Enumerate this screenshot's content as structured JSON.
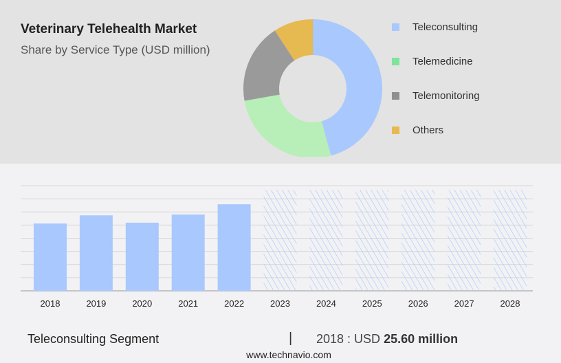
{
  "title": "Veterinary Telehealth Market",
  "subtitle": "Share by Service Type (USD million)",
  "chart_data": [
    {
      "type": "pie",
      "subtype": "donut",
      "legend_position": "right",
      "labels": [
        "Teleconsulting",
        "Telemedicine",
        "Telemonitoring",
        "Others"
      ],
      "values": [
        45.8,
        26.4,
        18.6,
        9.2
      ],
      "colors": [
        "#a8c8fe",
        "#b8eeb8",
        "#9a9a9a",
        "#e6b951"
      ]
    },
    {
      "type": "bar",
      "categories": [
        "2018",
        "2019",
        "2020",
        "2021",
        "2022",
        "2023",
        "2024",
        "2025",
        "2026",
        "2027",
        "2028"
      ],
      "values": [
        25.6,
        28.7,
        25.9,
        29.0,
        32.9,
        null,
        null,
        null,
        null,
        null,
        null
      ],
      "forecast": [
        "2023",
        "2024",
        "2025",
        "2026",
        "2027",
        "2028"
      ],
      "ylim": [
        0,
        40
      ],
      "grid": true,
      "color": "#a8c8fe"
    }
  ],
  "footer": {
    "segment": "Teleconsulting Segment",
    "separator": "|",
    "year_label": "2018 : USD",
    "value": "25.60 million",
    "url": "www.technavio.com"
  }
}
